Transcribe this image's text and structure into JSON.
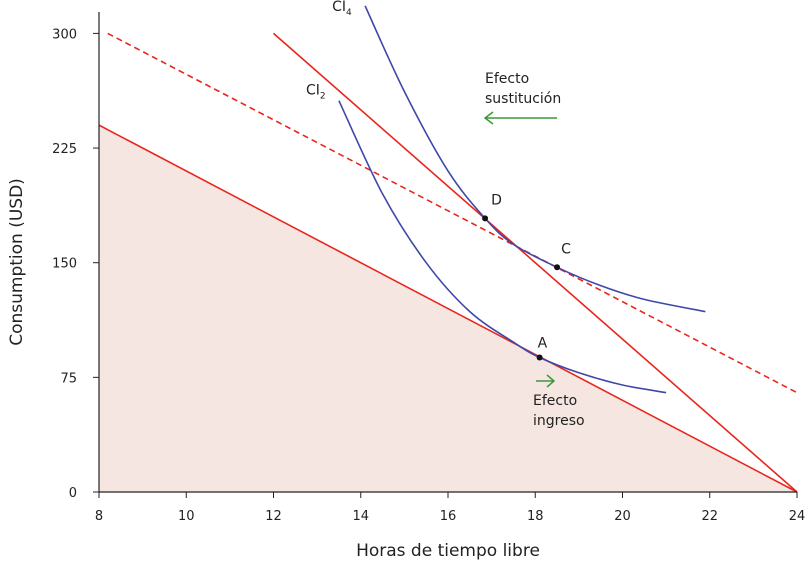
{
  "chart_data": {
    "type": "line",
    "title": "",
    "xlabel": "Horas de tiempo libre",
    "ylabel": "Consumption (USD)",
    "xlim": [
      8,
      24
    ],
    "ylim": [
      0,
      314
    ],
    "xticks": [
      8,
      10,
      12,
      14,
      16,
      18,
      20,
      22,
      24
    ],
    "yticks": [
      0,
      75,
      150,
      225,
      300
    ],
    "colors": {
      "budget": "#e8261c",
      "curve": "#3f48a8",
      "arrow": "#3a9a3a",
      "fill": "#f6e6e1"
    },
    "budget_lines": [
      {
        "name": "original",
        "points": [
          [
            8,
            240
          ],
          [
            24,
            0
          ]
        ],
        "style": "solid",
        "shaded": true
      },
      {
        "name": "new",
        "points": [
          [
            12,
            300
          ],
          [
            24,
            0
          ]
        ],
        "style": "solid"
      },
      {
        "name": "compensated",
        "points": [
          [
            8.2,
            300
          ],
          [
            24,
            65
          ]
        ],
        "style": "dashed"
      }
    ],
    "indifference_curves": [
      {
        "name": "CI",
        "sub": "2",
        "points": [
          [
            13.5,
            256
          ],
          [
            14.5,
            195
          ],
          [
            15.5,
            150
          ],
          [
            16.5,
            118
          ],
          [
            17.5,
            98
          ],
          [
            18.1,
            88
          ],
          [
            19,
            78
          ],
          [
            20,
            70
          ],
          [
            21,
            65
          ]
        ]
      },
      {
        "name": "CI",
        "sub": "4",
        "points": [
          [
            14.1,
            318
          ],
          [
            15,
            262
          ],
          [
            16,
            210
          ],
          [
            16.85,
            179
          ],
          [
            17.5,
            162
          ],
          [
            18.5,
            147
          ],
          [
            19.5,
            135
          ],
          [
            20.5,
            126
          ],
          [
            21.9,
            118
          ]
        ]
      }
    ],
    "points": [
      {
        "label": "A",
        "x": 18.1,
        "y": 88
      },
      {
        "label": "D",
        "x": 16.85,
        "y": 179
      },
      {
        "label": "C",
        "x": 18.5,
        "y": 147
      }
    ],
    "annotations": [
      {
        "line1": "Efecto",
        "line2": "sustitución",
        "direction": "left"
      },
      {
        "line1": "Efecto",
        "line2": "ingreso",
        "direction": "right"
      }
    ]
  }
}
